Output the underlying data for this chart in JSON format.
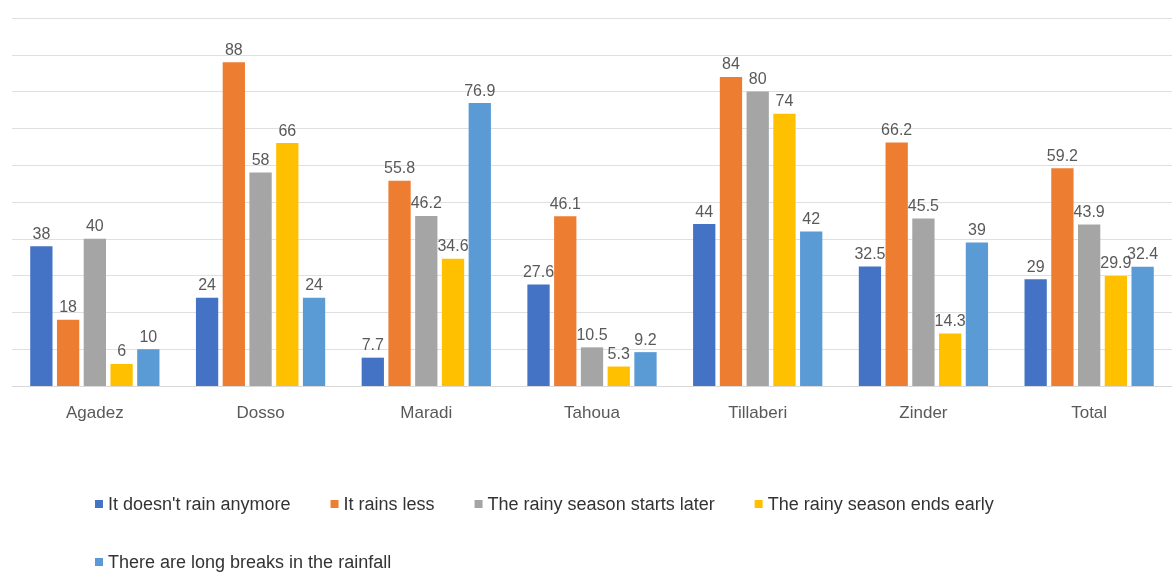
{
  "chart_data": {
    "type": "bar",
    "categories": [
      "Agadez",
      "Dosso",
      "Maradi",
      "Tahoua",
      "Tillaberi",
      "Zinder",
      "Total"
    ],
    "series": [
      {
        "name": "It doesn't rain anymore",
        "color": "#4472c4",
        "values": [
          38,
          24,
          7.7,
          27.6,
          44,
          32.5,
          29
        ]
      },
      {
        "name": "It rains less",
        "color": "#ed7d31",
        "values": [
          18,
          88,
          55.8,
          46.1,
          84,
          66.2,
          59.2
        ]
      },
      {
        "name": "The rainy season starts later",
        "color": "#a5a5a5",
        "values": [
          40,
          58,
          46.2,
          10.5,
          80,
          45.5,
          43.9
        ]
      },
      {
        "name": "The rainy season ends early",
        "color": "#ffc000",
        "values": [
          6,
          66,
          34.6,
          5.3,
          74,
          14.3,
          29.9
        ]
      },
      {
        "name": "There are long breaks in the rainfall",
        "color": "#5b9bd5",
        "values": [
          10,
          24,
          76.9,
          9.2,
          42,
          39,
          32.4
        ]
      }
    ],
    "ylim": [
      0,
      100
    ],
    "yticks": [
      {
        "value": 0,
        "label": null
      },
      {
        "value": 10,
        "label": null
      },
      {
        "value": 20,
        "label": null
      },
      {
        "value": 30,
        "label": null
      },
      {
        "value": 40,
        "label": null
      },
      {
        "value": 50,
        "label": null
      },
      {
        "value": 60,
        "label": null
      },
      {
        "value": 70,
        "label": null
      },
      {
        "value": 80,
        "label": null
      },
      {
        "value": 90,
        "label": null
      },
      {
        "value": 100,
        "label": null
      }
    ],
    "tick_labels": "x",
    "grid": "y",
    "legend": "bottom",
    "data_labels": true
  }
}
